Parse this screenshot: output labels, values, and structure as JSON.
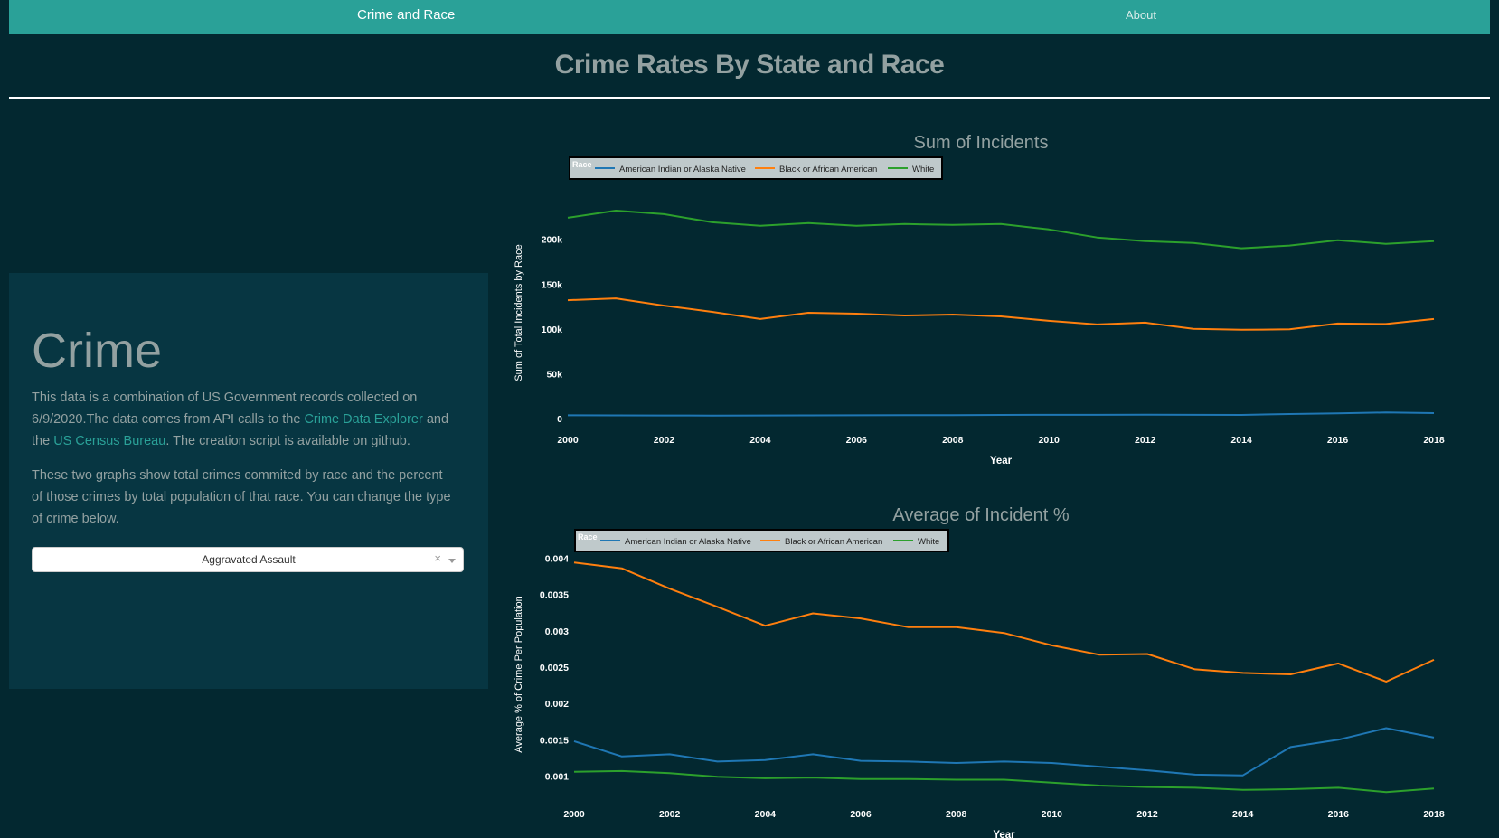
{
  "nav": {
    "brand": "Crime and Race",
    "about": "About"
  },
  "page_title": "Crime Rates By State and Race",
  "panel": {
    "heading": "Crime",
    "p1_before": "This data is a combination of US Government records collected on 6/9/2020.The data comes from API calls to the ",
    "link1": "Crime Data Explorer",
    "p1_mid": " and the ",
    "link2": "US Census Bureau",
    "p1_after": ". The creation script is available on github.",
    "p2": "These two graphs show total crimes commited by race and the percent of those crimes by total population of that race. You can change the type of crime below.",
    "dropdown_value": "Aggravated Assault",
    "dropdown_clear": "×"
  },
  "colors": {
    "American Indian or Alaska Native": "#1f77b4",
    "Black or African American": "#ff7f0e",
    "White": "#2ca02c"
  },
  "chart_data": [
    {
      "type": "line",
      "title": "Sum of Incidents",
      "xlabel": "Year",
      "ylabel": "Sum of Total Incidents by Race",
      "legend_title": "Race",
      "legend_position": "top-left",
      "x": [
        2000,
        2001,
        2002,
        2003,
        2004,
        2005,
        2006,
        2007,
        2008,
        2009,
        2010,
        2011,
        2012,
        2013,
        2014,
        2015,
        2016,
        2017,
        2018
      ],
      "xticks": [
        2000,
        2002,
        2004,
        2006,
        2008,
        2010,
        2012,
        2014,
        2016,
        2018
      ],
      "yticks": [
        0,
        50000,
        100000,
        150000,
        200000
      ],
      "ytick_labels": [
        "0",
        "50k",
        "100k",
        "150k",
        "200k"
      ],
      "ylim": [
        0,
        236000
      ],
      "grid": false,
      "series": [
        {
          "name": "American Indian or Alaska Native",
          "values": [
            3600,
            3500,
            3400,
            3300,
            3400,
            3500,
            3600,
            3700,
            3800,
            4000,
            4100,
            4100,
            4200,
            4100,
            4000,
            5000,
            5800,
            6800,
            6100
          ]
        },
        {
          "name": "Black or African American",
          "values": [
            132000,
            134000,
            126000,
            119000,
            111000,
            118000,
            117000,
            115000,
            116000,
            114000,
            109000,
            105000,
            107000,
            100000,
            99000,
            99500,
            106000,
            105500,
            111000
          ]
        },
        {
          "name": "White",
          "values": [
            224000,
            232000,
            228000,
            219000,
            215000,
            218000,
            215000,
            217000,
            216000,
            217000,
            211000,
            202000,
            198000,
            196000,
            190000,
            193000,
            199000,
            195000,
            198000
          ]
        }
      ]
    },
    {
      "type": "line",
      "title": "Average of Incident %",
      "xlabel": "Year",
      "ylabel": "Average % of Crime Per Population",
      "legend_title": "Race",
      "legend_position": "top-left",
      "x": [
        2000,
        2001,
        2002,
        2003,
        2004,
        2005,
        2006,
        2007,
        2008,
        2009,
        2010,
        2011,
        2012,
        2013,
        2014,
        2015,
        2016,
        2017,
        2018
      ],
      "xticks": [
        2000,
        2002,
        2004,
        2006,
        2008,
        2010,
        2012,
        2014,
        2016,
        2018
      ],
      "yticks": [
        0.001,
        0.0015,
        0.002,
        0.0025,
        0.003,
        0.0035,
        0.004
      ],
      "ytick_labels": [
        "0.001",
        "0.0015",
        "0.002",
        "0.0025",
        "0.003",
        "0.0035",
        "0.004"
      ],
      "ylim": [
        0.00077,
        0.00403
      ],
      "grid": false,
      "series": [
        {
          "name": "American Indian or Alaska Native",
          "values": [
            0.00148,
            0.00127,
            0.0013,
            0.0012,
            0.00122,
            0.0013,
            0.00121,
            0.0012,
            0.00118,
            0.0012,
            0.00118,
            0.00113,
            0.00108,
            0.00102,
            0.00101,
            0.0014,
            0.0015,
            0.00166,
            0.00153
          ]
        },
        {
          "name": "Black or African American",
          "values": [
            0.00394,
            0.00386,
            0.00358,
            0.00333,
            0.00307,
            0.00324,
            0.00317,
            0.00305,
            0.00305,
            0.00297,
            0.0028,
            0.00267,
            0.00268,
            0.00247,
            0.00242,
            0.0024,
            0.00255,
            0.0023,
            0.0026
          ]
        },
        {
          "name": "White",
          "values": [
            0.00106,
            0.00107,
            0.00104,
            0.00099,
            0.00097,
            0.00098,
            0.00096,
            0.00096,
            0.00095,
            0.00095,
            0.00091,
            0.00087,
            0.00085,
            0.00084,
            0.00081,
            0.00082,
            0.00084,
            0.00078,
            0.00083
          ]
        }
      ]
    }
  ]
}
